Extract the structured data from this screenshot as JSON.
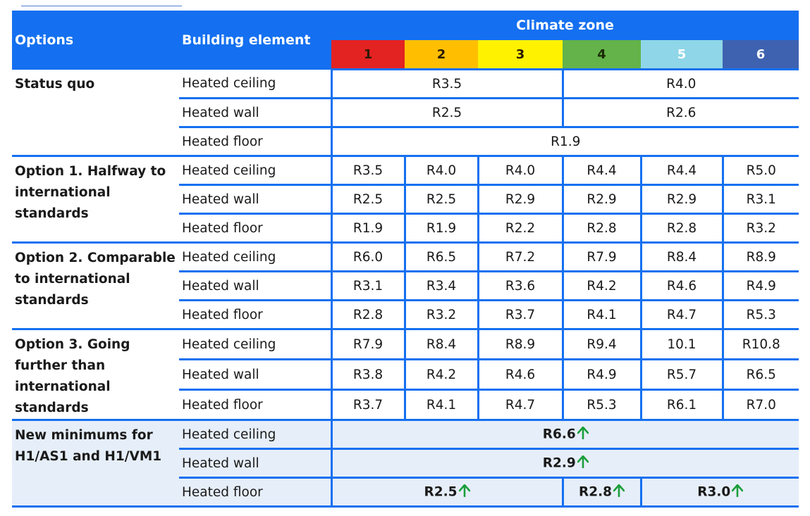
{
  "header": {
    "options": "Options",
    "building_element": "Building element",
    "climate_zone": "Climate zone",
    "zones": [
      "1",
      "2",
      "3",
      "4",
      "5",
      "6"
    ]
  },
  "colors": {
    "header_blue": "#1470f0",
    "zone_1": "#e32222",
    "zone_2": "#ffbf00",
    "zone_3": "#fff200",
    "zone_4": "#63b34a",
    "zone_5": "#8fd6e8",
    "zone_6": "#3f62b0",
    "arrow_green": "#1a9e3a",
    "new_minimum_bg": "#e6eef9"
  },
  "status_quo": {
    "label": "Status quo",
    "rows": [
      {
        "element": "Heated ceiling",
        "zones_1_3": "R3.5",
        "zones_4_6": "R4.0"
      },
      {
        "element": "Heated wall",
        "zones_1_3": "R2.5",
        "zones_4_6": "R2.6"
      },
      {
        "element": "Heated floor",
        "all_zones": "R1.9"
      }
    ]
  },
  "options": [
    {
      "label": "Option 1. Halfway to international standards",
      "rows": [
        {
          "element": "Heated ceiling",
          "values": [
            "R3.5",
            "R4.0",
            "R4.0",
            "R4.4",
            "R4.4",
            "R5.0"
          ]
        },
        {
          "element": "Heated wall",
          "values": [
            "R2.5",
            "R2.5",
            "R2.9",
            "R2.9",
            "R2.9",
            "R3.1"
          ]
        },
        {
          "element": "Heated floor",
          "values": [
            "R1.9",
            "R1.9",
            "R2.2",
            "R2.8",
            "R2.8",
            "R3.2"
          ]
        }
      ]
    },
    {
      "label": "Option 2. Comparable to international standards",
      "rows": [
        {
          "element": "Heated ceiling",
          "values": [
            "R6.0",
            "R6.5",
            "R7.2",
            "R7.9",
            "R8.4",
            "R8.9"
          ]
        },
        {
          "element": "Heated wall",
          "values": [
            "R3.1",
            "R3.4",
            "R3.6",
            "R4.2",
            "R4.6",
            "R4.9"
          ]
        },
        {
          "element": "Heated floor",
          "values": [
            "R2.8",
            "R3.2",
            "R3.7",
            "R4.1",
            "R4.7",
            "R5.3"
          ]
        }
      ]
    },
    {
      "label": "Option 3. Going further than international standards",
      "rows": [
        {
          "element": "Heated ceiling",
          "values": [
            "R7.9",
            "R8.4",
            "R8.9",
            "R9.4",
            "10.1",
            "R10.8"
          ]
        },
        {
          "element": "Heated wall",
          "values": [
            "R3.8",
            "R4.2",
            "R4.6",
            "R4.9",
            "R5.7",
            "R6.5"
          ]
        },
        {
          "element": "Heated floor",
          "values": [
            "R3.7",
            "R4.1",
            "R4.7",
            "R5.3",
            "R6.1",
            "R7.0"
          ]
        }
      ]
    }
  ],
  "new_minimums": {
    "label": "New minimums for H1/AS1 and H1/VM1",
    "ceiling": {
      "element": "Heated ceiling",
      "all_zones": "R6.6"
    },
    "wall": {
      "element": "Heated wall",
      "all_zones": "R2.9"
    },
    "floor": {
      "element": "Heated floor",
      "zones_1_3": "R2.5",
      "zone_4": "R2.8",
      "zones_5_6": "R3.0"
    },
    "arrow_icon": "up-arrow-icon"
  }
}
